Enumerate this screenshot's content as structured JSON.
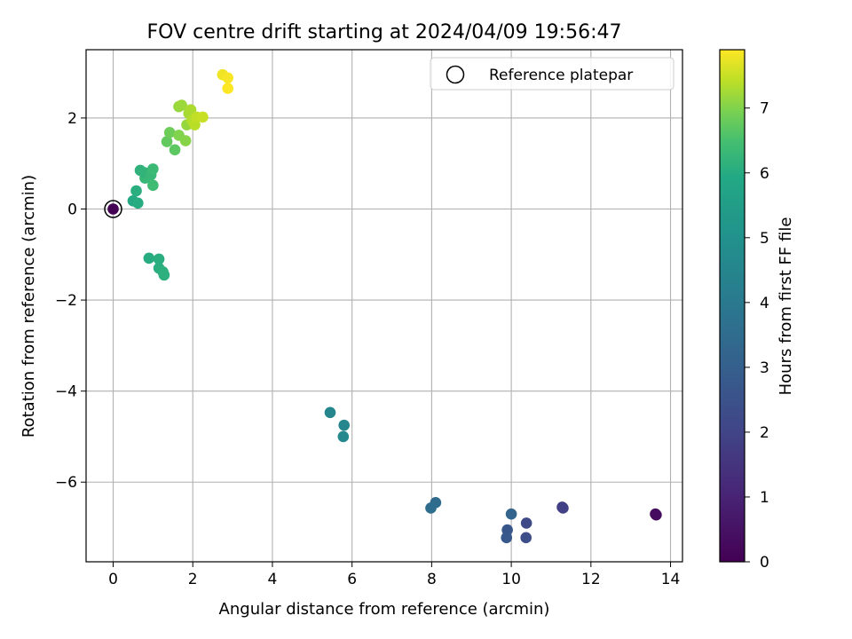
{
  "chart_data": {
    "type": "scatter",
    "title": "FOV centre drift starting at 2024/04/09 19:56:47",
    "xlabel": "Angular distance from reference (arcmin)",
    "ylabel": "Rotation from reference (arcmin)",
    "xlim": [
      -0.68,
      14.3
    ],
    "ylim": [
      -7.75,
      3.5
    ],
    "xticks": [
      0,
      2,
      4,
      6,
      8,
      10,
      12,
      14
    ],
    "yticks": [
      -6,
      -4,
      -2,
      0,
      2
    ],
    "grid": true,
    "legend": {
      "placement": "top-right",
      "entries": [
        "Reference platepar"
      ]
    },
    "colorbar": {
      "label": "Hours from first FF file",
      "range": [
        0,
        7.9
      ],
      "ticks": [
        0,
        1,
        2,
        3,
        4,
        5,
        6,
        7
      ],
      "colormap": "viridis"
    },
    "reference_point": {
      "x": 0,
      "y": 0
    },
    "points": [
      {
        "x": 13.62,
        "y": -6.7,
        "c": 0.25
      },
      {
        "x": 13.64,
        "y": -6.72,
        "c": 0.3
      },
      {
        "x": 11.28,
        "y": -6.55,
        "c": 1.8
      },
      {
        "x": 11.3,
        "y": -6.57,
        "c": 1.9
      },
      {
        "x": 10.38,
        "y": -6.9,
        "c": 2.2
      },
      {
        "x": 10.37,
        "y": -7.22,
        "c": 2.35
      },
      {
        "x": 9.9,
        "y": -7.05,
        "c": 2.65
      },
      {
        "x": 9.88,
        "y": -7.22,
        "c": 2.75
      },
      {
        "x": 10.0,
        "y": -6.7,
        "c": 3.2
      },
      {
        "x": 8.1,
        "y": -6.45,
        "c": 3.45
      },
      {
        "x": 7.98,
        "y": -6.57,
        "c": 3.55
      },
      {
        "x": 5.8,
        "y": -4.75,
        "c": 4.55
      },
      {
        "x": 5.78,
        "y": -5.0,
        "c": 4.6
      },
      {
        "x": 5.45,
        "y": -4.47,
        "c": 4.5
      },
      {
        "x": 0.9,
        "y": -1.08,
        "c": 6.0
      },
      {
        "x": 1.15,
        "y": -1.1,
        "c": 6.05
      },
      {
        "x": 1.15,
        "y": -1.3,
        "c": 6.05
      },
      {
        "x": 1.25,
        "y": -1.38,
        "c": 6.1
      },
      {
        "x": 1.28,
        "y": -1.45,
        "c": 6.1
      },
      {
        "x": 0.5,
        "y": 0.18,
        "c": 5.95
      },
      {
        "x": 0.62,
        "y": 0.13,
        "c": 6.0
      },
      {
        "x": 0.58,
        "y": 0.4,
        "c": 6.05
      },
      {
        "x": 0.68,
        "y": 0.85,
        "c": 6.15
      },
      {
        "x": 0.8,
        "y": 0.68,
        "c": 6.3
      },
      {
        "x": 0.78,
        "y": 0.8,
        "c": 6.2
      },
      {
        "x": 0.95,
        "y": 0.75,
        "c": 6.3
      },
      {
        "x": 1.0,
        "y": 0.88,
        "c": 6.35
      },
      {
        "x": 1.0,
        "y": 0.52,
        "c": 6.4
      },
      {
        "x": 1.35,
        "y": 1.48,
        "c": 6.75
      },
      {
        "x": 1.42,
        "y": 1.68,
        "c": 6.85
      },
      {
        "x": 1.55,
        "y": 1.3,
        "c": 6.7
      },
      {
        "x": 1.65,
        "y": 1.62,
        "c": 7.0
      },
      {
        "x": 1.82,
        "y": 1.5,
        "c": 7.05
      },
      {
        "x": 1.85,
        "y": 1.85,
        "c": 7.15
      },
      {
        "x": 1.65,
        "y": 2.25,
        "c": 7.15
      },
      {
        "x": 1.72,
        "y": 2.28,
        "c": 7.2
      },
      {
        "x": 1.9,
        "y": 2.1,
        "c": 7.25
      },
      {
        "x": 1.95,
        "y": 2.18,
        "c": 7.3
      },
      {
        "x": 1.98,
        "y": 1.95,
        "c": 7.35
      },
      {
        "x": 2.05,
        "y": 1.85,
        "c": 7.4
      },
      {
        "x": 2.1,
        "y": 2.02,
        "c": 7.45
      },
      {
        "x": 2.25,
        "y": 2.02,
        "c": 7.5
      },
      {
        "x": 2.75,
        "y": 2.95,
        "c": 7.8
      },
      {
        "x": 2.88,
        "y": 2.88,
        "c": 7.85
      },
      {
        "x": 2.88,
        "y": 2.65,
        "c": 7.9
      },
      {
        "x": 0.0,
        "y": 0.0,
        "c": 0.0
      }
    ]
  }
}
